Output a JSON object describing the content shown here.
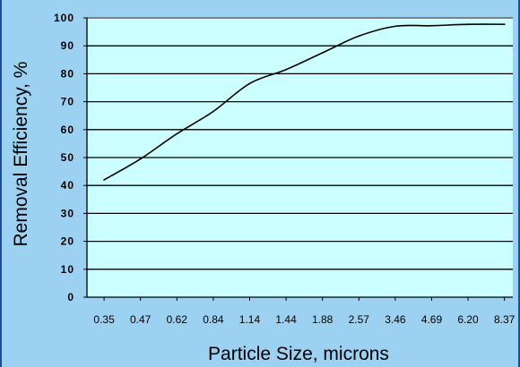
{
  "chart_data": {
    "type": "line",
    "title": "",
    "xlabel": "Particle Size, microns",
    "ylabel": "Removal Efficiency, %",
    "categories": [
      "0.35",
      "0.47",
      "0.62",
      "0.84",
      "1.14",
      "1.44",
      "1.88",
      "2.57",
      "3.46",
      "4.69",
      "6.20",
      "8.37"
    ],
    "y_ticks": [
      "0",
      "10",
      "20",
      "30",
      "40",
      "50",
      "60",
      "70",
      "80",
      "90",
      "100"
    ],
    "ylim": [
      0,
      100
    ],
    "grid": true,
    "legend": "none",
    "series": [
      {
        "values": [
          42,
          49.5,
          58.5,
          66.5,
          76.5,
          81.5,
          87.5,
          93.5,
          97,
          97.2,
          97.7,
          97.7
        ]
      }
    ],
    "colors": {
      "background": "#9dd1f2",
      "plot_background": "#ccffff",
      "gridline": "#000000",
      "top_gridline": "#808080",
      "line": "#000000",
      "frame": "#1b4f9a"
    }
  }
}
